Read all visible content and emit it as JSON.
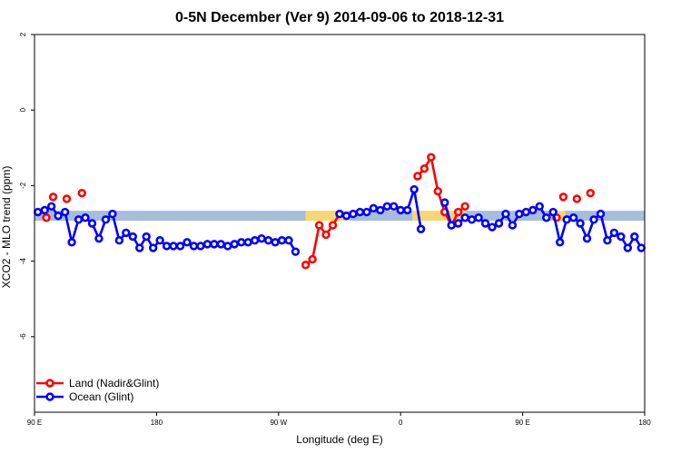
{
  "chart_data": {
    "type": "line",
    "title": "0-5N December (Ver 9)   2014-09-06 to 2018-12-31",
    "xlabel": "Longitude (deg E)",
    "ylabel": "XCO2 - MLO trend (ppm)",
    "xlim": [
      90,
      450
    ],
    "ylim": [
      -8,
      2
    ],
    "x_ticks": [
      {
        "value": 90,
        "label": "90 E"
      },
      {
        "value": 162,
        "label": "180"
      },
      {
        "value": 234,
        "label": "90 W"
      },
      {
        "value": 306,
        "label": "0"
      },
      {
        "value": 378,
        "label": "90 E"
      },
      {
        "value": 450,
        "label": "180"
      }
    ],
    "y_ticks": [
      {
        "value": 2,
        "label": "2"
      },
      {
        "value": 0,
        "label": "0"
      },
      {
        "value": -2,
        "label": "-2"
      },
      {
        "value": -4,
        "label": "-4"
      },
      {
        "value": -6,
        "label": "-6"
      }
    ],
    "legend_position": "bottom-left",
    "band": {
      "y": -2.8,
      "segments": [
        {
          "x": [
            90,
            250
          ],
          "color": "#a6bddb"
        },
        {
          "x": [
            250,
            276
          ],
          "color": "#f7d774"
        },
        {
          "x": [
            276,
            313
          ],
          "color": "#a6bddb"
        },
        {
          "x": [
            313,
            345
          ],
          "color": "#f7d774"
        },
        {
          "x": [
            345,
            398
          ],
          "color": "#a6bddb"
        },
        {
          "x": [
            398,
            403
          ],
          "color": "#f7d774"
        },
        {
          "x": [
            403,
            450
          ],
          "color": "#a6bddb"
        }
      ]
    },
    "series": [
      {
        "name": "Land (Nadir&Glint)",
        "color": "#ff0000",
        "segments": [
          [
            [
              97,
              -2.85
            ]
          ],
          [
            [
              101,
              -2.3
            ]
          ],
          [
            [
              109,
              -2.35
            ]
          ],
          [
            [
              118,
              -2.2
            ]
          ],
          [
            [
              250,
              -4.1
            ],
            [
              254,
              -3.95
            ],
            [
              258,
              -3.05
            ],
            [
              262,
              -3.3
            ],
            [
              266,
              -3.05
            ],
            [
              270,
              -2.75
            ]
          ],
          [
            [
              316,
              -1.75
            ],
            [
              320,
              -1.55
            ],
            [
              324,
              -1.25
            ],
            [
              328,
              -2.15
            ],
            [
              332,
              -2.7
            ],
            [
              336,
              -3.05
            ],
            [
              340,
              -2.7
            ],
            [
              344,
              -2.55
            ]
          ],
          [
            [
              398,
              -2.85
            ]
          ],
          [
            [
              402,
              -2.3
            ]
          ],
          [
            [
              410,
              -2.35
            ]
          ],
          [
            [
              418,
              -2.2
            ]
          ]
        ]
      },
      {
        "name": "Ocean (Glint)",
        "color": "#0000ff",
        "segments": [
          [
            [
              92,
              -2.7
            ],
            [
              96,
              -2.65
            ],
            [
              100,
              -2.55
            ],
            [
              104,
              -2.8
            ],
            [
              108,
              -2.7
            ],
            [
              112,
              -3.5
            ],
            [
              116,
              -2.9
            ],
            [
              120,
              -2.85
            ],
            [
              124,
              -3.0
            ],
            [
              128,
              -3.4
            ],
            [
              132,
              -2.9
            ],
            [
              136,
              -2.75
            ],
            [
              140,
              -3.45
            ],
            [
              144,
              -3.25
            ],
            [
              148,
              -3.35
            ],
            [
              152,
              -3.65
            ],
            [
              156,
              -3.35
            ],
            [
              160,
              -3.65
            ],
            [
              164,
              -3.45
            ],
            [
              168,
              -3.6
            ],
            [
              172,
              -3.6
            ],
            [
              176,
              -3.6
            ],
            [
              180,
              -3.5
            ],
            [
              184,
              -3.6
            ],
            [
              188,
              -3.6
            ],
            [
              192,
              -3.55
            ],
            [
              196,
              -3.55
            ],
            [
              200,
              -3.55
            ],
            [
              204,
              -3.6
            ],
            [
              208,
              -3.55
            ],
            [
              212,
              -3.5
            ],
            [
              216,
              -3.5
            ],
            [
              220,
              -3.45
            ],
            [
              224,
              -3.4
            ],
            [
              228,
              -3.45
            ],
            [
              232,
              -3.5
            ],
            [
              236,
              -3.45
            ],
            [
              240,
              -3.45
            ],
            [
              244,
              -3.75
            ]
          ],
          [
            [
              270,
              -2.75
            ],
            [
              274,
              -2.8
            ],
            [
              278,
              -2.75
            ],
            [
              282,
              -2.7
            ],
            [
              286,
              -2.7
            ],
            [
              290,
              -2.6
            ],
            [
              294,
              -2.65
            ],
            [
              298,
              -2.55
            ],
            [
              302,
              -2.55
            ],
            [
              306,
              -2.65
            ],
            [
              310,
              -2.65
            ],
            [
              314,
              -2.1
            ],
            [
              318,
              -3.15
            ]
          ],
          [
            [
              332,
              -2.45
            ],
            [
              336,
              -3.05
            ],
            [
              340,
              -3.0
            ],
            [
              344,
              -2.85
            ],
            [
              348,
              -2.9
            ],
            [
              352,
              -2.85
            ],
            [
              356,
              -3.0
            ],
            [
              360,
              -3.1
            ],
            [
              364,
              -3.0
            ],
            [
              368,
              -2.75
            ],
            [
              372,
              -3.05
            ],
            [
              376,
              -2.75
            ],
            [
              380,
              -2.7
            ],
            [
              384,
              -2.65
            ],
            [
              388,
              -2.55
            ],
            [
              392,
              -2.85
            ],
            [
              396,
              -2.7
            ],
            [
              400,
              -3.5
            ],
            [
              404,
              -2.9
            ],
            [
              408,
              -2.85
            ],
            [
              412,
              -3.0
            ],
            [
              416,
              -3.4
            ],
            [
              420,
              -2.9
            ],
            [
              424,
              -2.75
            ],
            [
              428,
              -3.45
            ],
            [
              432,
              -3.25
            ],
            [
              436,
              -3.35
            ],
            [
              440,
              -3.65
            ],
            [
              444,
              -3.35
            ],
            [
              448,
              -3.65
            ]
          ]
        ]
      }
    ]
  }
}
